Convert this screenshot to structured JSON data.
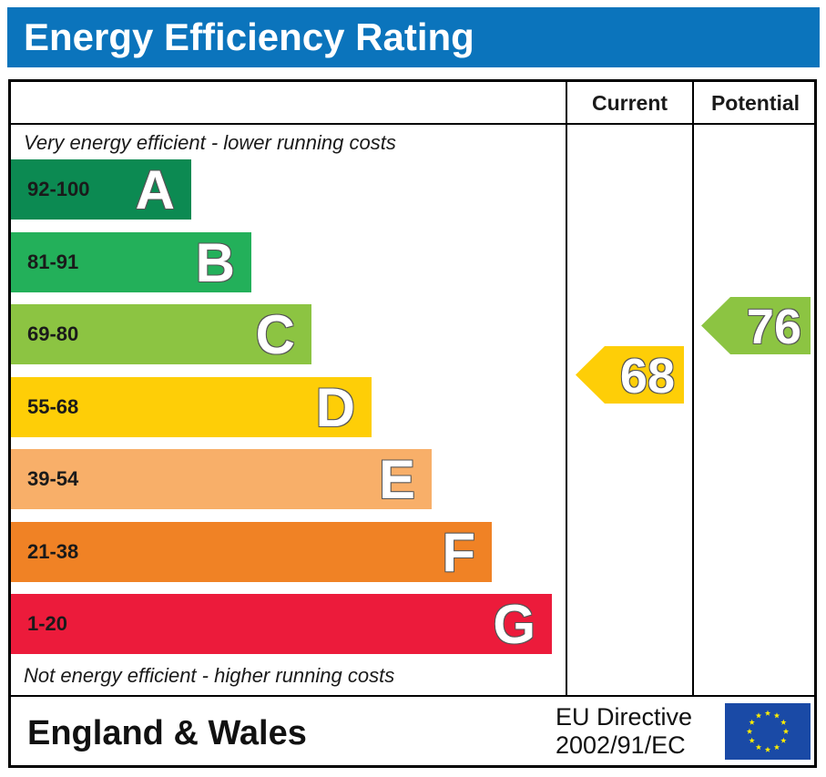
{
  "header": {
    "title": "Energy Efficiency Rating"
  },
  "columns": {
    "current_label": "Current",
    "potential_label": "Potential"
  },
  "notes": {
    "top": "Very energy efficient - lower running costs",
    "bottom": "Not energy efficient - higher running costs"
  },
  "chart_data": {
    "type": "bar",
    "categories": [
      "A",
      "B",
      "C",
      "D",
      "E",
      "F",
      "G"
    ],
    "ranges": [
      "92-100",
      "81-91",
      "69-80",
      "55-68",
      "39-54",
      "21-38",
      "1-20"
    ],
    "colors": [
      "#0c8a52",
      "#23b05a",
      "#8cc442",
      "#fece07",
      "#f8af69",
      "#f08225",
      "#ec1b3b"
    ],
    "range_text_colors": [
      "#1a1a1a",
      "#1a1a1a",
      "#1a1a1a",
      "#1a1a1a",
      "#1a1a1a",
      "#1a1a1a",
      "#1a1a1a"
    ],
    "current": {
      "value": 68,
      "band": "D",
      "color": "#fece07"
    },
    "potential": {
      "value": 76,
      "band": "C",
      "color": "#8cc442"
    }
  },
  "footer": {
    "region": "England & Wales",
    "directive_line1": "EU Directive",
    "directive_line2": "2002/91/EC"
  },
  "icons": {
    "eu_flag": "eu-flag-icon"
  },
  "flag_colors": {
    "field": "#1a4aa6",
    "stars": "#ffee00"
  }
}
